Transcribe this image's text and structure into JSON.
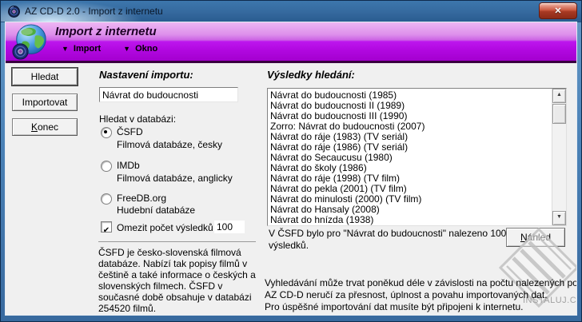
{
  "window": {
    "title": "AZ CD-D 2.0 - Import z internetu"
  },
  "header": {
    "title": "Import z internetu",
    "menus": [
      {
        "label": "Import"
      },
      {
        "label": "Okno"
      }
    ]
  },
  "sidebar": {
    "hledat": "Hledat",
    "importovat": "Importovat",
    "konec_key": "K",
    "konec_rest": "onec"
  },
  "settings": {
    "heading": "Nastavení importu:",
    "search_value": "Návrat do budoucnosti",
    "database_label": "Hledat v databázi:",
    "radios": [
      {
        "label": "ČSFD",
        "sub": "Filmová databáze, česky",
        "selected": true
      },
      {
        "label": "IMDb",
        "sub": "Filmová databáze, anglicky",
        "selected": false
      },
      {
        "label": "FreeDB.org",
        "sub": "Hudební databáze",
        "selected": false
      }
    ],
    "limit_label": "Omezit počet výsledků na",
    "limit_value": "100",
    "info_text": "ČSFD je česko-slovenská filmová databáze. Nabízí tak popisy filmů v češtině a také informace o českých a slovenských filmech. ČSFD v současné době obsahuje v databázi 254520 filmů."
  },
  "results": {
    "heading": "Výsledky hledání:",
    "items": [
      "Návrat do budoucnosti (1985)",
      "Návrat do budoucnosti II (1989)",
      "Návrat do budoucnosti III (1990)",
      "Zorro: Návrat do budoucnosti (2007)",
      "Návrat do ráje (1983) (TV seriál)",
      "Návrat do ráje (1986) (TV seriál)",
      "Návrat do Secaucusu (1980)",
      "Návrat do školy (1986)",
      "Návrat do ráje (1998) (TV film)",
      "Návrat do pekla (2001) (TV film)",
      "Návrat do minulosti (2000) (TV film)",
      "Návrat do Hansaly (2008)",
      "Návrat do hnízda (1938)"
    ],
    "status_text": "V ČSFD bylo pro \"Návrat do budoucnosti\" nalezeno 100 výsledků.",
    "preview_key": "N",
    "preview_rest": "áhled"
  },
  "footer": {
    "lines": [
      "Vyhledávání může trvat poněkud déle v závislosti na počtu nalezených položek.",
      "AZ CD-D neručí za přesnost, úplnost a povahu importovaných dat.",
      "Pro úspěšné importování dat musíte být připojeni k internetu."
    ],
    "watermark": "INSTALUJ.CZ"
  },
  "icons": {
    "close": "✕",
    "menu_arrow": "▼",
    "check": "✔",
    "scroll_up": "▲",
    "scroll_down": "▼"
  },
  "colors": {
    "header_purple": "#b513ea",
    "header_purple_light": "#eeb6f3",
    "titlebar_blue": "#35699e",
    "window_border_blue": "#4a81b6",
    "close_button_red": "#a83a24",
    "client_gray": "#f0f0f0"
  }
}
